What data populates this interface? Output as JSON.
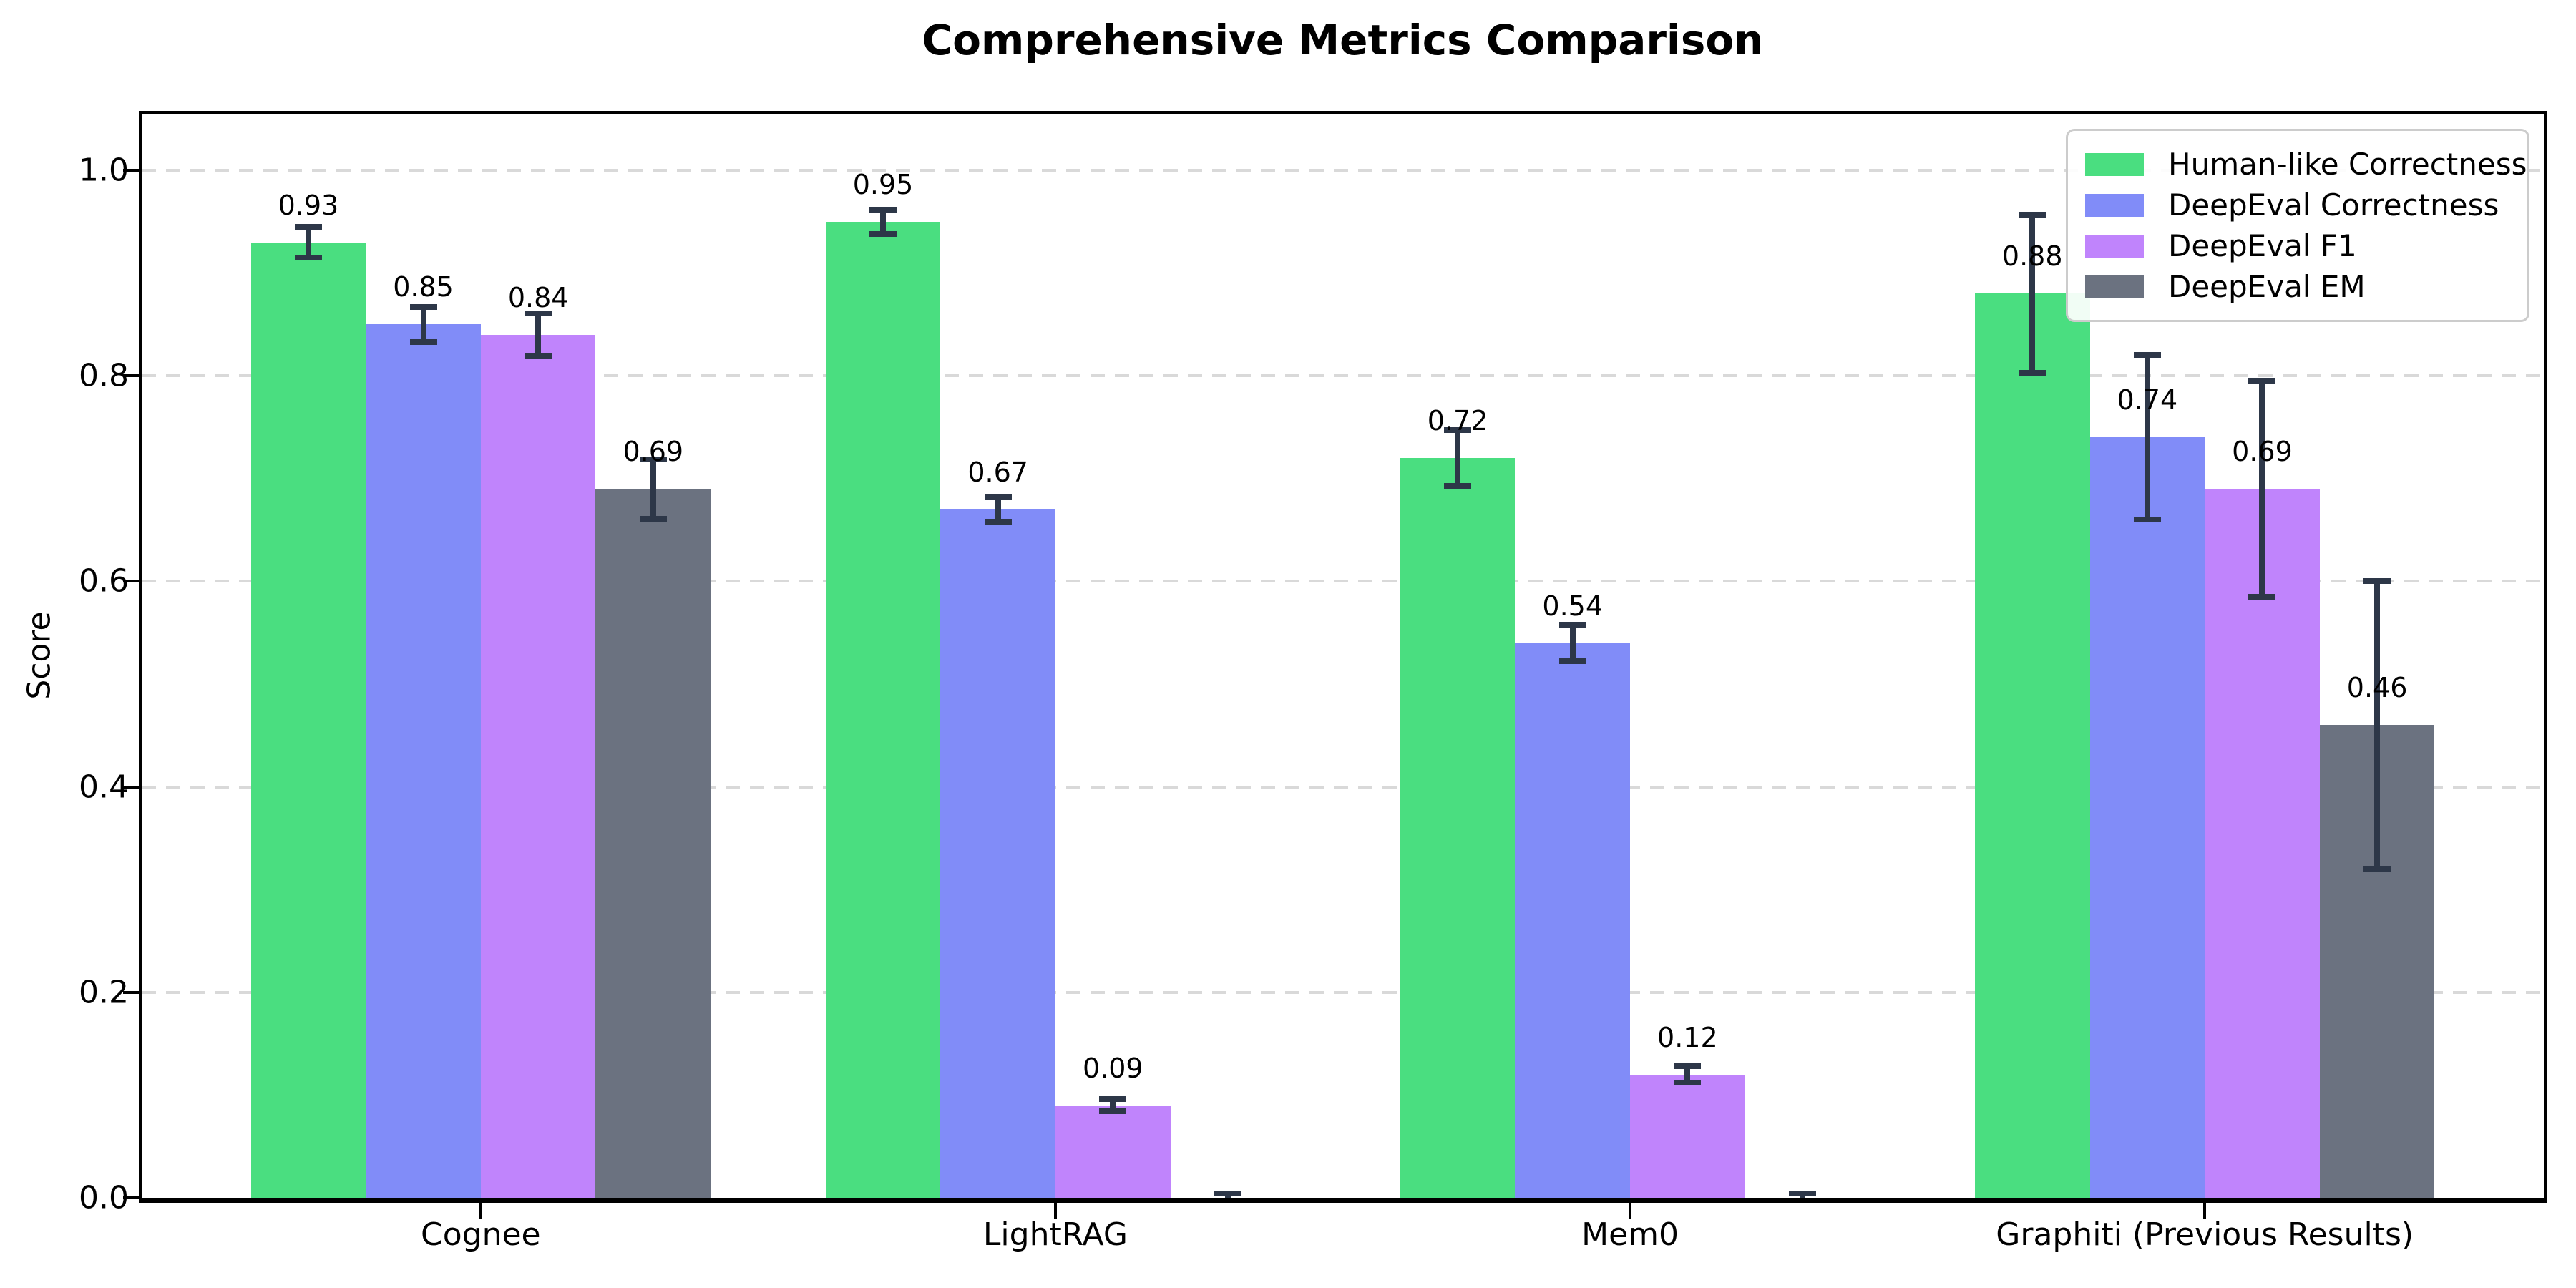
{
  "chart_data": {
    "type": "bar",
    "title": "Comprehensive Metrics Comparison",
    "xlabel": "",
    "ylabel": "Score",
    "categories": [
      "Cognee",
      "LightRAG",
      "Mem0",
      "Graphiti (Previous Results)"
    ],
    "series": [
      {
        "name": "Human-like Correctness",
        "color": "#4ade80",
        "values": [
          0.93,
          0.95,
          0.72,
          0.88
        ],
        "errors": [
          0.015,
          0.012,
          0.027,
          0.077
        ],
        "value_labels": [
          "0.93",
          "0.95",
          "0.72",
          "0.88"
        ]
      },
      {
        "name": "DeepEval Correctness",
        "color": "#818cf8",
        "values": [
          0.85,
          0.67,
          0.54,
          0.74
        ],
        "errors": [
          0.017,
          0.012,
          0.018,
          0.08
        ],
        "value_labels": [
          "0.85",
          "0.67",
          "0.54",
          "0.74"
        ]
      },
      {
        "name": "DeepEval F1",
        "color": "#c084fc",
        "values": [
          0.84,
          0.09,
          0.12,
          0.69
        ],
        "errors": [
          0.021,
          0.006,
          0.008,
          0.105
        ],
        "value_labels": [
          "0.84",
          "0.09",
          "0.12",
          "0.69"
        ]
      },
      {
        "name": "DeepEval EM",
        "color": "#6b7280",
        "values": [
          0.69,
          0.0,
          0.0,
          0.46
        ],
        "errors": [
          0.029,
          0.004,
          0.004,
          0.14
        ],
        "value_labels": [
          "0.69",
          "",
          "",
          "0.46"
        ]
      }
    ],
    "ylim": [
      0,
      1.055
    ],
    "yticks": {
      "values": [
        0.0,
        0.2,
        0.4,
        0.6,
        0.8,
        1.0
      ],
      "labels": [
        "0.0",
        "0.2",
        "0.4",
        "0.6",
        "0.8",
        "1.0"
      ]
    },
    "grid": {
      "axis": "y",
      "style": "dashed",
      "color": "#d9d9d9"
    },
    "legend": {
      "position": "upper right",
      "entries": [
        "Human-like Correctness",
        "DeepEval Correctness",
        "DeepEval F1",
        "DeepEval EM"
      ]
    },
    "error_bar_color": "#2d3748",
    "background": "#ffffff"
  }
}
